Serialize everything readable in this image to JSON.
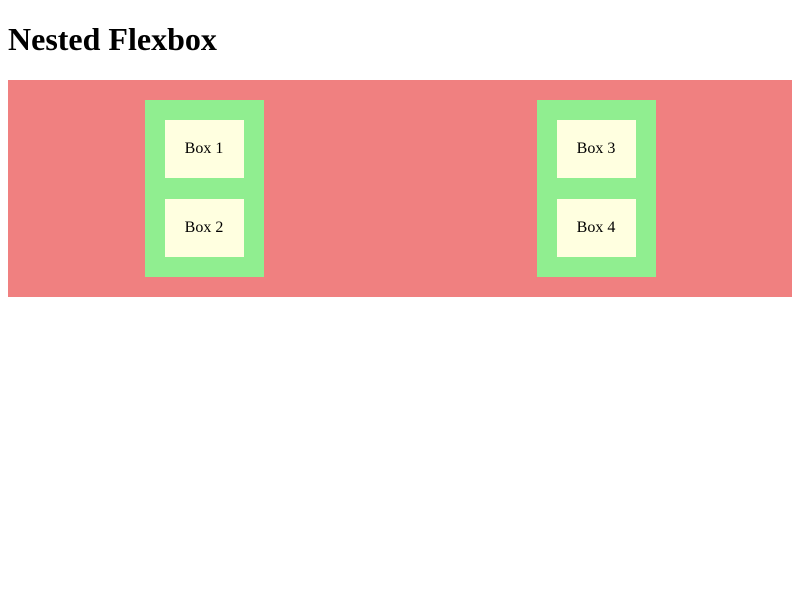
{
  "page": {
    "title": "Nested Flexbox"
  },
  "colors": {
    "outer_background": "#f08080",
    "column_background": "#90ee90",
    "box_background": "#ffffe0"
  },
  "columns": [
    {
      "boxes": [
        {
          "label": "Box 1"
        },
        {
          "label": "Box 2"
        }
      ]
    },
    {
      "boxes": [
        {
          "label": "Box 3"
        },
        {
          "label": "Box 4"
        }
      ]
    }
  ]
}
